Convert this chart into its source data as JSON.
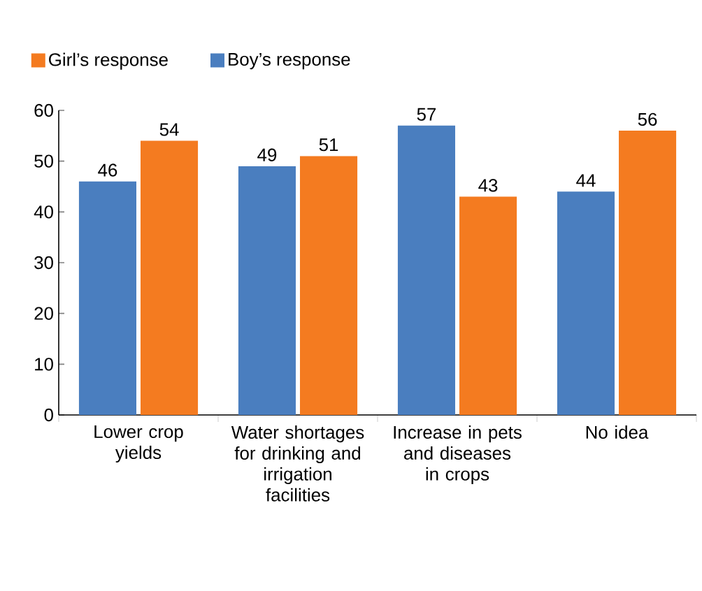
{
  "chart_data": {
    "type": "bar",
    "categories": [
      "Lower crop yields",
      "Water shortages for drinking and irrigation facilities",
      "Increase in pets and diseases in crops",
      "No idea"
    ],
    "series": [
      {
        "name": "Boy’s response",
        "color": "#4a7ebf",
        "values": [
          46,
          49,
          57,
          44
        ]
      },
      {
        "name": "Girl’s response",
        "color": "#f47b20",
        "values": [
          54,
          51,
          43,
          56
        ]
      }
    ],
    "ylim": [
      0,
      60
    ],
    "yticks": [
      0,
      10,
      20,
      30,
      40,
      50,
      60
    ],
    "data_labels": true,
    "legend": "top",
    "grid": false
  }
}
